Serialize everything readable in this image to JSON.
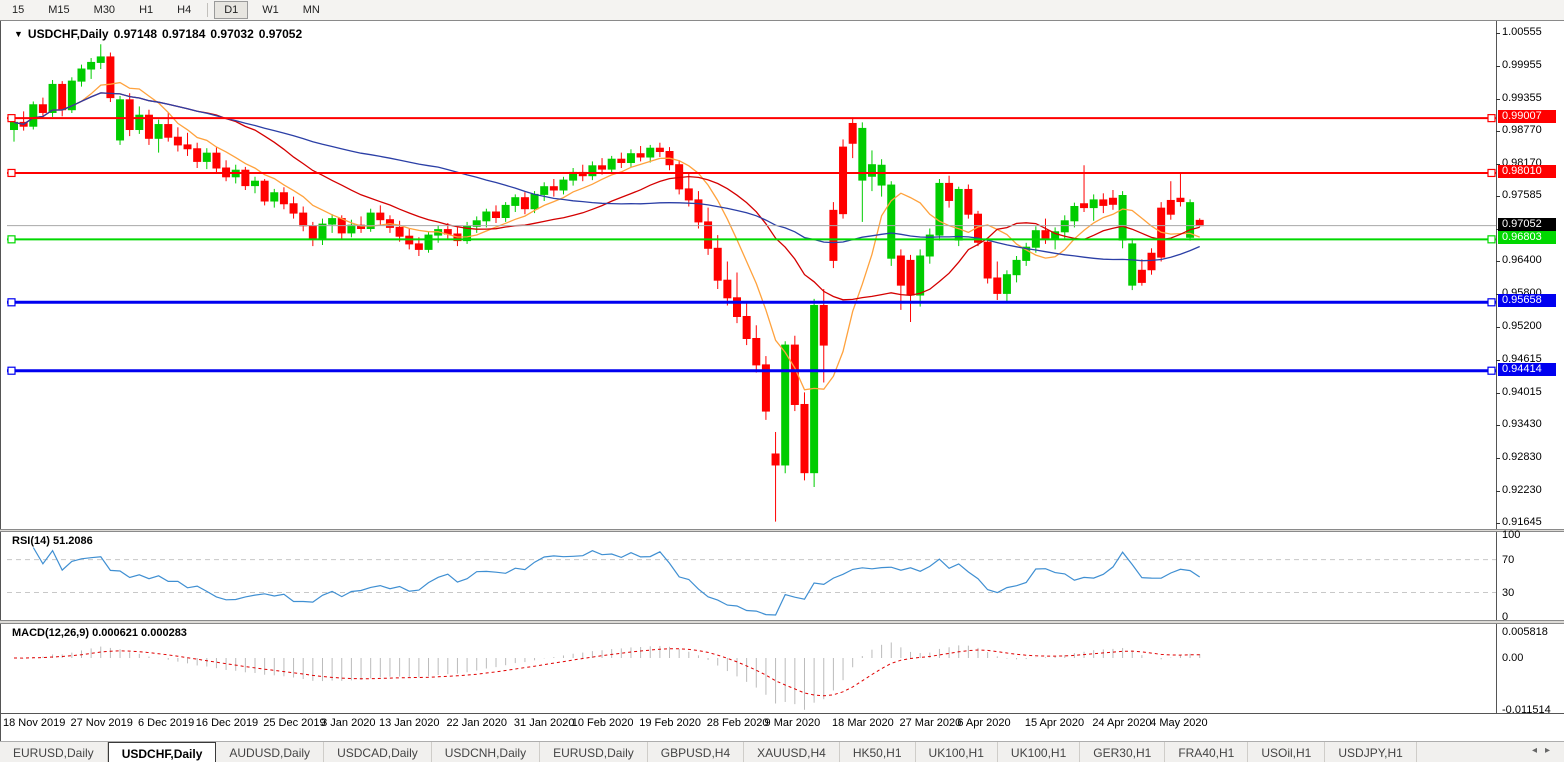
{
  "toolbar": {
    "items": [
      {
        "label": "15",
        "active": false
      },
      {
        "label": "M15",
        "active": false
      },
      {
        "label": "M30",
        "active": false
      },
      {
        "label": "H1",
        "active": false
      },
      {
        "label": "H4",
        "active": false
      },
      {
        "label": "D1",
        "active": true
      },
      {
        "label": "W1",
        "active": false
      },
      {
        "label": "MN",
        "active": false
      }
    ]
  },
  "header": {
    "symbol": "USDCHF,Daily",
    "open": "0.97148",
    "high": "0.97184",
    "low": "0.97032",
    "close": "0.97052"
  },
  "colors": {
    "candle_up": "#00CC00",
    "candle_down": "#FF0000",
    "ma_fast": "#FFA23D",
    "ma_mid": "#D40000",
    "ma_slow": "#2B3FA6",
    "hline_red": "#FF0000",
    "hline_green": "#00D800",
    "hline_blue": "#0000F0",
    "current_line": "#A8A8A8",
    "current_badge": "#000000",
    "rsi_line": "#3F8FD2",
    "macd_hist": "#BBBBBB",
    "macd_signal": "#E00000",
    "level_dash": "#C8C8C8"
  },
  "chart_data": {
    "type": "candlestick",
    "symbol": "USDCHF",
    "timeframe": "Daily",
    "price_axis_labels": [
      1.00555,
      0.99955,
      0.99355,
      0.9877,
      0.9817,
      0.97585,
      0.96985,
      0.964,
      0.958,
      0.952,
      0.94615,
      0.94015,
      0.9343,
      0.9283,
      0.9223,
      0.91645
    ],
    "x_tick_labels": [
      "18 Nov 2019",
      "27 Nov 2019",
      "6 Dec 2019",
      "16 Dec 2019",
      "25 Dec 2019",
      "3 Jan 2020",
      "13 Jan 2020",
      "22 Jan 2020",
      "31 Jan 2020",
      "10 Feb 2020",
      "19 Feb 2020",
      "28 Feb 2020",
      "9 Mar 2020",
      "18 Mar 2020",
      "27 Mar 2020",
      "6 Apr 2020",
      "15 Apr 2020",
      "24 Apr 2020",
      "4 May 2020"
    ],
    "x_tick_indices": [
      0,
      7,
      14,
      20,
      27,
      33,
      39,
      46,
      53,
      59,
      66,
      73,
      79,
      86,
      93,
      99,
      106,
      113,
      119
    ],
    "hlines": [
      {
        "price": 0.99007,
        "label": "0.99007",
        "color": "#FF0000",
        "width": 2
      },
      {
        "price": 0.9801,
        "label": "0.98010",
        "color": "#FF0000",
        "width": 2
      },
      {
        "price": 0.96803,
        "label": "0.96803",
        "color": "#00D800",
        "width": 2
      },
      {
        "price": 0.95658,
        "label": "0.95658",
        "color": "#0000F0",
        "width": 3
      },
      {
        "price": 0.94414,
        "label": "0.94414",
        "color": "#0000F0",
        "width": 3
      }
    ],
    "current": {
      "price": 0.97052,
      "label": "0.97052"
    },
    "moving_averages": [
      {
        "period": 8,
        "color": "#FFA23D"
      },
      {
        "period": 20,
        "color": "#D40000"
      },
      {
        "period": 45,
        "color": "#2B3FA6"
      }
    ],
    "candles": [
      [
        0.988,
        0.9902,
        0.9858,
        0.9893
      ],
      [
        0.9893,
        0.9913,
        0.9878,
        0.9886
      ],
      [
        0.9886,
        0.9931,
        0.988,
        0.9925
      ],
      [
        0.9925,
        0.9938,
        0.99,
        0.9911
      ],
      [
        0.9911,
        0.997,
        0.9903,
        0.9962
      ],
      [
        0.9962,
        0.9968,
        0.9904,
        0.9916
      ],
      [
        0.9916,
        0.9975,
        0.991,
        0.9968
      ],
      [
        0.9968,
        0.9998,
        0.9958,
        0.999
      ],
      [
        0.999,
        1.001,
        0.9972,
        1.0002
      ],
      [
        1.0002,
        1.0035,
        0.999,
        1.0012
      ],
      [
        1.0012,
        1.002,
        0.993,
        0.9938
      ],
      [
        0.9861,
        0.9941,
        0.9852,
        0.9934
      ],
      [
        0.9934,
        0.9946,
        0.9868,
        0.988
      ],
      [
        0.988,
        0.9922,
        0.9872,
        0.9906
      ],
      [
        0.9906,
        0.9916,
        0.9852,
        0.9864
      ],
      [
        0.9864,
        0.9898,
        0.9838,
        0.9889
      ],
      [
        0.9889,
        0.991,
        0.9858,
        0.9866
      ],
      [
        0.9866,
        0.9884,
        0.984,
        0.9852
      ],
      [
        0.9852,
        0.9874,
        0.9832,
        0.9845
      ],
      [
        0.9845,
        0.9856,
        0.981,
        0.9822
      ],
      [
        0.9822,
        0.9846,
        0.9808,
        0.9837
      ],
      [
        0.9837,
        0.9848,
        0.98,
        0.981
      ],
      [
        0.981,
        0.9824,
        0.9786,
        0.9794
      ],
      [
        0.9794,
        0.9816,
        0.9782,
        0.9806
      ],
      [
        0.9806,
        0.9812,
        0.977,
        0.9778
      ],
      [
        0.9778,
        0.9794,
        0.9764,
        0.9786
      ],
      [
        0.9786,
        0.979,
        0.9742,
        0.975
      ],
      [
        0.975,
        0.9772,
        0.9738,
        0.9765
      ],
      [
        0.9765,
        0.9775,
        0.9735,
        0.9745
      ],
      [
        0.9745,
        0.9758,
        0.9718,
        0.9728
      ],
      [
        0.9728,
        0.974,
        0.9695,
        0.9705
      ],
      [
        0.9705,
        0.9712,
        0.9668,
        0.968
      ],
      [
        0.9682,
        0.9718,
        0.967,
        0.9708
      ],
      [
        0.9708,
        0.9726,
        0.9692,
        0.9718
      ],
      [
        0.9718,
        0.9724,
        0.968,
        0.9692
      ],
      [
        0.9692,
        0.9716,
        0.9684,
        0.9706
      ],
      [
        0.9706,
        0.9722,
        0.9692,
        0.97
      ],
      [
        0.97,
        0.9736,
        0.9694,
        0.9728
      ],
      [
        0.9728,
        0.9742,
        0.9706,
        0.9716
      ],
      [
        0.9716,
        0.9724,
        0.9692,
        0.9702
      ],
      [
        0.9702,
        0.9714,
        0.9676,
        0.9686
      ],
      [
        0.9686,
        0.97,
        0.9662,
        0.9672
      ],
      [
        0.9672,
        0.9684,
        0.965,
        0.9662
      ],
      [
        0.9662,
        0.9694,
        0.9656,
        0.9688
      ],
      [
        0.9688,
        0.9706,
        0.9674,
        0.9698
      ],
      [
        0.9698,
        0.971,
        0.968,
        0.969
      ],
      [
        0.969,
        0.9702,
        0.9668,
        0.9678
      ],
      [
        0.9678,
        0.9712,
        0.9672,
        0.9704
      ],
      [
        0.9704,
        0.9722,
        0.9692,
        0.9714
      ],
      [
        0.9714,
        0.9736,
        0.9702,
        0.973
      ],
      [
        0.973,
        0.9742,
        0.971,
        0.972
      ],
      [
        0.972,
        0.9748,
        0.9712,
        0.9742
      ],
      [
        0.9742,
        0.9762,
        0.973,
        0.9756
      ],
      [
        0.9756,
        0.9766,
        0.9726,
        0.9736
      ],
      [
        0.9736,
        0.9768,
        0.9728,
        0.9762
      ],
      [
        0.9762,
        0.9784,
        0.975,
        0.9776
      ],
      [
        0.9776,
        0.979,
        0.9758,
        0.977
      ],
      [
        0.977,
        0.9794,
        0.9762,
        0.9788
      ],
      [
        0.9788,
        0.981,
        0.9778,
        0.9802
      ],
      [
        0.9802,
        0.9816,
        0.9786,
        0.9796
      ],
      [
        0.9796,
        0.9822,
        0.9788,
        0.9814
      ],
      [
        0.9814,
        0.9828,
        0.9798,
        0.9808
      ],
      [
        0.9808,
        0.9832,
        0.98,
        0.9826
      ],
      [
        0.9826,
        0.9838,
        0.981,
        0.982
      ],
      [
        0.982,
        0.9844,
        0.9812,
        0.9836
      ],
      [
        0.9836,
        0.985,
        0.9822,
        0.983
      ],
      [
        0.983,
        0.9852,
        0.982,
        0.9846
      ],
      [
        0.9846,
        0.9856,
        0.983,
        0.984
      ],
      [
        0.984,
        0.9848,
        0.9806,
        0.9816
      ],
      [
        0.9816,
        0.9824,
        0.9762,
        0.9772
      ],
      [
        0.9772,
        0.98,
        0.974,
        0.9752
      ],
      [
        0.9752,
        0.9768,
        0.97,
        0.9712
      ],
      [
        0.9712,
        0.9738,
        0.9652,
        0.9664
      ],
      [
        0.9664,
        0.9688,
        0.959,
        0.9606
      ],
      [
        0.9606,
        0.964,
        0.956,
        0.9574
      ],
      [
        0.9574,
        0.962,
        0.9528,
        0.954
      ],
      [
        0.954,
        0.9568,
        0.9488,
        0.95
      ],
      [
        0.95,
        0.9524,
        0.9438,
        0.9452
      ],
      [
        0.9452,
        0.9468,
        0.9352,
        0.9368
      ],
      [
        0.929,
        0.933,
        0.9167,
        0.927
      ],
      [
        0.927,
        0.9495,
        0.9255,
        0.9488
      ],
      [
        0.9488,
        0.9505,
        0.9368,
        0.938
      ],
      [
        0.938,
        0.9402,
        0.9242,
        0.9256
      ],
      [
        0.9256,
        0.9572,
        0.923,
        0.956
      ],
      [
        0.956,
        0.959,
        0.942,
        0.9488
      ],
      [
        0.9733,
        0.9748,
        0.9628,
        0.9642
      ],
      [
        0.9848,
        0.9862,
        0.9718,
        0.9727
      ],
      [
        0.9891,
        0.9902,
        0.9828,
        0.9855
      ],
      [
        0.9788,
        0.9893,
        0.9712,
        0.9882
      ],
      [
        0.9795,
        0.9842,
        0.9768,
        0.9816
      ],
      [
        0.9779,
        0.9826,
        0.9758,
        0.9815
      ],
      [
        0.9646,
        0.9786,
        0.9632,
        0.9779
      ],
      [
        0.965,
        0.9662,
        0.9552,
        0.9597
      ],
      [
        0.9642,
        0.9652,
        0.953,
        0.9579
      ],
      [
        0.9579,
        0.9662,
        0.9558,
        0.965
      ],
      [
        0.965,
        0.97,
        0.9636,
        0.9688
      ],
      [
        0.9688,
        0.979,
        0.9678,
        0.9782
      ],
      [
        0.9782,
        0.9796,
        0.9738,
        0.9751
      ],
      [
        0.9679,
        0.9776,
        0.9668,
        0.9771
      ],
      [
        0.9771,
        0.978,
        0.9718,
        0.9726
      ],
      [
        0.9726,
        0.9732,
        0.9668,
        0.9675
      ],
      [
        0.9675,
        0.9682,
        0.96,
        0.961
      ],
      [
        0.961,
        0.964,
        0.957,
        0.9582
      ],
      [
        0.9582,
        0.9624,
        0.9566,
        0.9616
      ],
      [
        0.9616,
        0.965,
        0.9602,
        0.9642
      ],
      [
        0.9642,
        0.9674,
        0.9632,
        0.9666
      ],
      [
        0.9666,
        0.9704,
        0.9656,
        0.9696
      ],
      [
        0.9696,
        0.9718,
        0.9672,
        0.9682
      ],
      [
        0.9682,
        0.9702,
        0.9662,
        0.9694
      ],
      [
        0.9694,
        0.9724,
        0.9682,
        0.9714
      ],
      [
        0.9714,
        0.9747,
        0.9702,
        0.974
      ],
      [
        0.9745,
        0.9815,
        0.973,
        0.9738
      ],
      [
        0.9738,
        0.9762,
        0.9714,
        0.9752
      ],
      [
        0.9752,
        0.9764,
        0.9728,
        0.9742
      ],
      [
        0.9755,
        0.977,
        0.9734,
        0.9744
      ],
      [
        0.9679,
        0.9768,
        0.9664,
        0.976
      ],
      [
        0.9597,
        0.9682,
        0.9588,
        0.9672
      ],
      [
        0.9624,
        0.9644,
        0.9596,
        0.9602
      ],
      [
        0.9655,
        0.9664,
        0.9616,
        0.9625
      ],
      [
        0.9737,
        0.9748,
        0.964,
        0.9648
      ],
      [
        0.9751,
        0.9786,
        0.9716,
        0.9726
      ],
      [
        0.9755,
        0.9801,
        0.974,
        0.9749
      ],
      [
        0.9684,
        0.9753,
        0.9678,
        0.9747
      ],
      [
        0.97148,
        0.97184,
        0.97032,
        0.97052
      ]
    ],
    "rsi": {
      "name": "RSI(14)",
      "value": "51.2086",
      "period": 14,
      "levels": [
        70,
        30
      ],
      "axis_labels": [
        "100",
        "70",
        "30",
        "0"
      ],
      "axis_values": [
        100,
        70,
        30,
        0
      ]
    },
    "macd": {
      "name": "MACD(12,26,9)",
      "value_main": "0.000621",
      "value_signal": "0.000283",
      "fast": 12,
      "slow": 26,
      "signal": 9,
      "axis_labels": [
        "0.005818",
        "0.00",
        "-0.011514"
      ],
      "axis_values": [
        0.005818,
        0,
        -0.011514
      ]
    }
  },
  "tabs": {
    "items": [
      {
        "label": "EURUSD,Daily",
        "active": false
      },
      {
        "label": "USDCHF,Daily",
        "active": true
      },
      {
        "label": "AUDUSD,Daily",
        "active": false
      },
      {
        "label": "USDCAD,Daily",
        "active": false
      },
      {
        "label": "USDCNH,Daily",
        "active": false
      },
      {
        "label": "EURUSD,Daily",
        "active": false
      },
      {
        "label": "GBPUSD,H4",
        "active": false
      },
      {
        "label": "XAUUSD,H4",
        "active": false
      },
      {
        "label": "HK50,H1",
        "active": false
      },
      {
        "label": "UK100,H1",
        "active": false
      },
      {
        "label": "UK100,H1",
        "active": false
      },
      {
        "label": "GER30,H1",
        "active": false
      },
      {
        "label": "FRA40,H1",
        "active": false
      },
      {
        "label": "USOil,H1",
        "active": false
      },
      {
        "label": "USDJPY,H1",
        "active": false
      }
    ],
    "scroll_left": "◂",
    "scroll_right": "▸"
  }
}
